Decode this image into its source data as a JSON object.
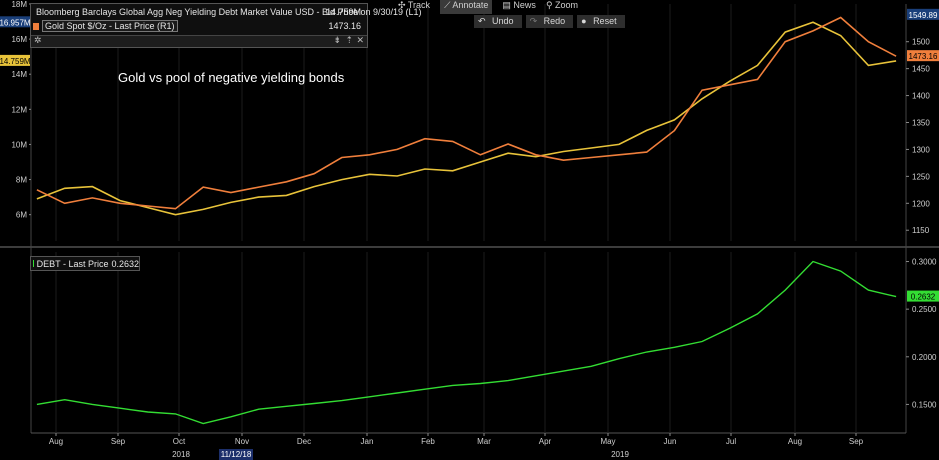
{
  "toolbar": {
    "track_label": "Track",
    "annotate_label": "Annotate",
    "news_label": "News",
    "zoom_label": "Zoom",
    "undo_label": "Undo",
    "redo_label": "Redo",
    "reset_label": "Reset"
  },
  "legend_top": {
    "series1_label": "Bloomberg Barclays Global Agg Neg Yielding Debt Market Value USD - Bid Price on 9/30/19 (L1)",
    "series1_value": "14.759M",
    "series2_label": "Gold Spot $/Oz - Last Price (R1)",
    "series2_value": "1473.16"
  },
  "legend_bottom": {
    "series_label": "DEBT - Last Price",
    "series_value": "0.2632"
  },
  "annotation": "Gold vs pool of negative yielding bonds",
  "left_badges": {
    "high": "16.957M",
    "last": "14.759M"
  },
  "right_badges": {
    "high": "1549.89",
    "last": "1473.16",
    "debt_last": "0.2632"
  },
  "colors": {
    "debt_mv": "#e8c33a",
    "gold": "#f07f3c",
    "debt": "#33dd33",
    "background": "#000000"
  },
  "chart_data": [
    {
      "type": "line",
      "title": "",
      "x": [
        "2018-07-23",
        "2018-08-06",
        "2018-08-20",
        "2018-09-03",
        "2018-09-17",
        "2018-10-01",
        "2018-10-15",
        "2018-10-29",
        "2018-11-12",
        "2018-11-26",
        "2018-12-10",
        "2018-12-24",
        "2019-01-07",
        "2019-01-21",
        "2019-02-04",
        "2019-02-18",
        "2019-03-04",
        "2019-03-18",
        "2019-04-01",
        "2019-04-15",
        "2019-04-29",
        "2019-05-13",
        "2019-05-27",
        "2019-06-10",
        "2019-06-24",
        "2019-07-08",
        "2019-07-22",
        "2019-08-05",
        "2019-08-19",
        "2019-09-02",
        "2019-09-16",
        "2019-09-30"
      ],
      "x_tick_labels": [
        "Aug",
        "Sep",
        "Oct",
        "Nov",
        "Dec",
        "Jan",
        "Feb",
        "Mar",
        "Apr",
        "May",
        "Jun",
        "Jul",
        "Aug",
        "Sep"
      ],
      "x_year_labels": [
        "2018",
        "2019"
      ],
      "x_cursor_label": "11/12/18",
      "left_axis": {
        "ylim": [
          4.5,
          18
        ],
        "tick_labels": [
          "6M",
          "8M",
          "10M",
          "12M",
          "14M",
          "16M",
          "18M"
        ]
      },
      "right_axis": {
        "ylim": [
          1130,
          1570
        ],
        "tick_labels": [
          "1150",
          "1200",
          "1250",
          "1300",
          "1350",
          "1400",
          "1450",
          "1500"
        ]
      },
      "series": [
        {
          "name": "Bloomberg Barclays Global Agg Neg Yielding Debt Market Value USD - Bid Price on 9/30/19 (L1)",
          "axis": "left",
          "unit": "M",
          "values": [
            6.9,
            7.5,
            7.6,
            6.8,
            6.4,
            6.0,
            6.3,
            6.7,
            7.0,
            7.1,
            7.6,
            8.0,
            8.3,
            8.2,
            8.6,
            8.5,
            9.0,
            9.5,
            9.3,
            9.6,
            9.8,
            10.0,
            10.8,
            11.4,
            12.6,
            13.6,
            14.5,
            16.4,
            16.96,
            16.2,
            14.5,
            14.759
          ]
        },
        {
          "name": "Gold Spot $/Oz - Last Price (R1)",
          "axis": "right",
          "unit": "$/Oz",
          "values": [
            1225,
            1200,
            1210,
            1200,
            1195,
            1190,
            1230,
            1220,
            1230,
            1240,
            1255,
            1285,
            1290,
            1300,
            1320,
            1315,
            1290,
            1310,
            1290,
            1280,
            1285,
            1290,
            1295,
            1335,
            1410,
            1420,
            1430,
            1500,
            1520,
            1545,
            1500,
            1473.16
          ]
        }
      ]
    },
    {
      "type": "line",
      "title": "",
      "x": [
        "2018-07-23",
        "2018-08-06",
        "2018-08-20",
        "2018-09-03",
        "2018-09-17",
        "2018-10-01",
        "2018-10-15",
        "2018-10-29",
        "2018-11-12",
        "2018-11-26",
        "2018-12-10",
        "2018-12-24",
        "2019-01-07",
        "2019-01-21",
        "2019-02-04",
        "2019-02-18",
        "2019-03-04",
        "2019-03-18",
        "2019-04-01",
        "2019-04-15",
        "2019-04-29",
        "2019-05-13",
        "2019-05-27",
        "2019-06-10",
        "2019-06-24",
        "2019-07-08",
        "2019-07-22",
        "2019-08-05",
        "2019-08-19",
        "2019-09-02",
        "2019-09-16",
        "2019-09-30"
      ],
      "ylim": [
        0.12,
        0.31
      ],
      "tick_labels": [
        "0.1500",
        "0.2000",
        "0.2500",
        "0.3000"
      ],
      "series": [
        {
          "name": "DEBT - Last Price",
          "values": [
            0.15,
            0.155,
            0.15,
            0.146,
            0.142,
            0.14,
            0.13,
            0.137,
            0.145,
            0.148,
            0.151,
            0.154,
            0.158,
            0.162,
            0.166,
            0.17,
            0.172,
            0.175,
            0.18,
            0.185,
            0.19,
            0.198,
            0.205,
            0.21,
            0.216,
            0.23,
            0.245,
            0.27,
            0.3,
            0.29,
            0.27,
            0.2632
          ]
        }
      ]
    }
  ]
}
